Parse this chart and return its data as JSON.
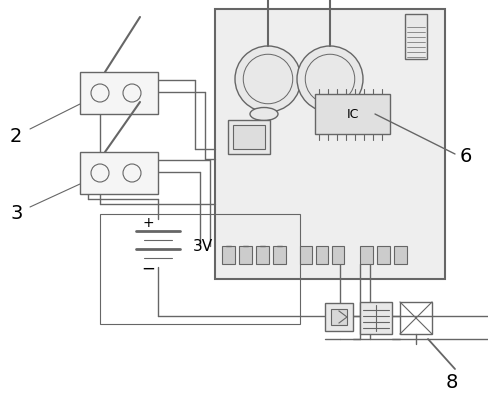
{
  "bg_color": "#ffffff",
  "line_color": "#666666",
  "label_2": "2",
  "label_3": "3",
  "label_6": "6",
  "label_8": "8",
  "label_3v": "3V",
  "label_ic": "IC",
  "label_fontsize": 14
}
